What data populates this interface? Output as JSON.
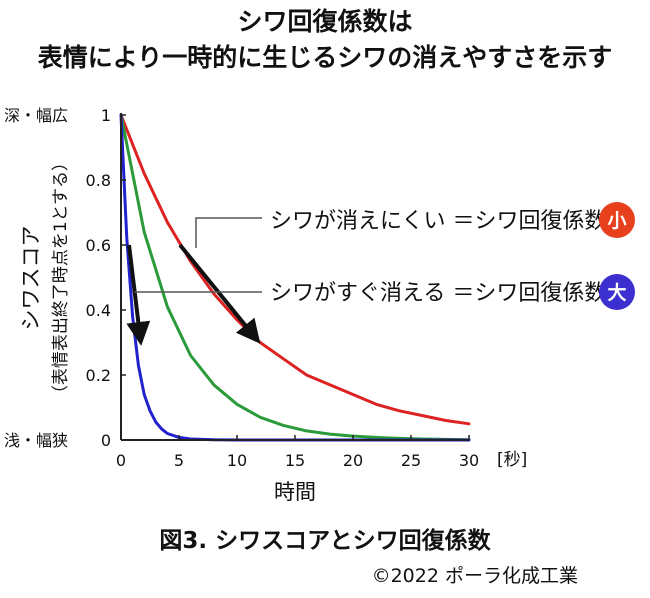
{
  "title": {
    "line1": "シワ回復係数は",
    "line2": "表情により一時的に生じるシワの消えやすさを示す"
  },
  "caption": "図3. シワスコアとシワ回復係数",
  "copyright": "©2022 ポーラ化成工業",
  "chart_data": {
    "type": "line",
    "xlabel": "時間",
    "xunit": "[秒]",
    "ylabel": "シワスコア",
    "ylabel_sub": "（表情表出終了時点を1とする）",
    "y_top_label": "深・幅広",
    "y_bottom_label": "浅・幅狭",
    "xlim": [
      0,
      30
    ],
    "ylim": [
      0,
      1
    ],
    "xticks": [
      0,
      5,
      10,
      15,
      20,
      25,
      30
    ],
    "yticks": [
      0,
      0.2,
      0.4,
      0.6,
      0.8,
      1
    ],
    "ytick_labels": [
      "0",
      "0.2",
      "0.4",
      "0.6",
      "0.8",
      "1"
    ],
    "grid": false,
    "series": [
      {
        "color": "#dd2222",
        "x": [
          0,
          2,
          4,
          6,
          8,
          10,
          12,
          14,
          16,
          18,
          20,
          22,
          24,
          26,
          28,
          30
        ],
        "y": [
          1.0,
          0.82,
          0.67,
          0.55,
          0.45,
          0.37,
          0.3,
          0.25,
          0.2,
          0.17,
          0.14,
          0.11,
          0.09,
          0.075,
          0.06,
          0.05
        ]
      },
      {
        "color": "#2a9a3a",
        "x": [
          0,
          2,
          4,
          6,
          8,
          10,
          12,
          14,
          16,
          18,
          20,
          22,
          24,
          26,
          28,
          30
        ],
        "y": [
          1.0,
          0.64,
          0.41,
          0.26,
          0.17,
          0.11,
          0.07,
          0.045,
          0.028,
          0.018,
          0.012,
          0.008,
          0.005,
          0.003,
          0.002,
          0.001
        ]
      },
      {
        "color": "#2222cc",
        "x": [
          0,
          0.5,
          1,
          1.5,
          2,
          2.5,
          3,
          3.5,
          4,
          5,
          6,
          8,
          10,
          15,
          20,
          30
        ],
        "y": [
          1.0,
          0.62,
          0.38,
          0.23,
          0.14,
          0.09,
          0.055,
          0.034,
          0.02,
          0.008,
          0.003,
          0.0005,
          0.0001,
          0,
          0,
          0
        ]
      }
    ],
    "annotations": [
      {
        "text": "シワが消えにくい ＝シワ回復係数",
        "badge": "小",
        "badge_color": "#e8401c"
      },
      {
        "text": "シワがすぐ消える ＝シワ回復係数",
        "badge": "大",
        "badge_color": "#3c2fd0"
      }
    ]
  }
}
